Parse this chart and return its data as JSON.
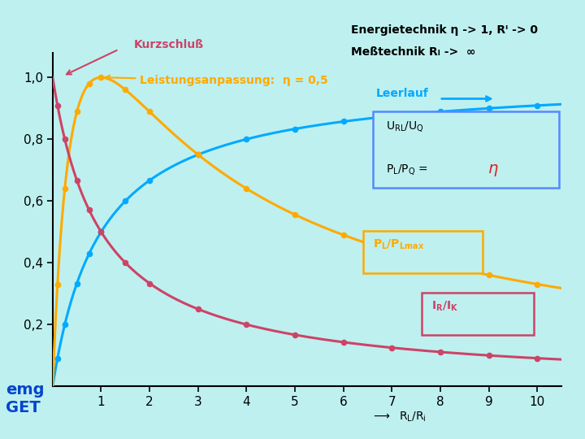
{
  "bg_color": "#bef0f0",
  "title_line1": "Energietechnik η -> 1, Rᴵ -> 0",
  "title_line2": "Meßtechnik Rₗ ->  ∞",
  "ylim": [
    0,
    1.08
  ],
  "xlim": [
    0,
    10.5
  ],
  "xticks": [
    1,
    2,
    3,
    4,
    5,
    6,
    7,
    8,
    9,
    10
  ],
  "yticks": [
    0.2,
    0.4,
    0.6,
    0.8,
    1.0
  ],
  "color_blue": "#00aaff",
  "color_orange": "#ffaa00",
  "color_red": "#cc4466",
  "color_emg": "#0044cc"
}
